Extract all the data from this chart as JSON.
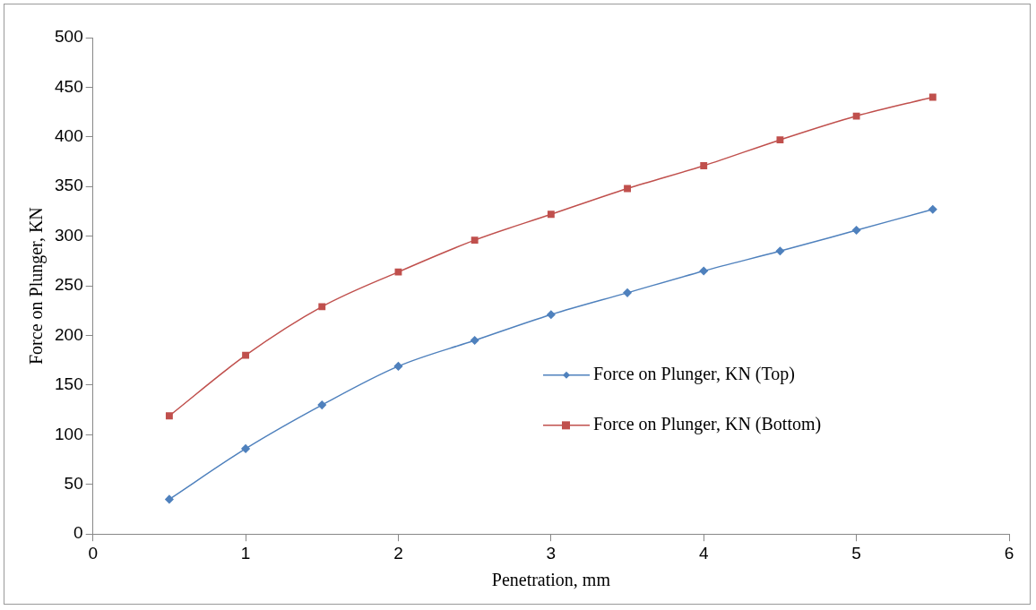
{
  "chart_data": {
    "type": "line",
    "xlabel": "Penetration, mm",
    "ylabel": "Force on Plunger, KN",
    "xlim": [
      0,
      6
    ],
    "xticks": [
      0,
      1,
      2,
      3,
      4,
      5,
      6
    ],
    "ylim": [
      0,
      500
    ],
    "yticks": [
      0,
      50,
      100,
      150,
      200,
      250,
      300,
      350,
      400,
      450,
      500
    ],
    "x": [
      0.5,
      1,
      1.5,
      2,
      2.5,
      3,
      3.5,
      4,
      4.5,
      5,
      5.5
    ],
    "series": [
      {
        "name": "Force on Plunger, KN (Top)",
        "color": "#4f81bd",
        "marker": "diamond",
        "values": [
          35,
          86,
          130,
          169,
          195,
          221,
          243,
          265,
          285,
          306,
          327
        ]
      },
      {
        "name": "Force on Plunger, KN (Bottom)",
        "color": "#c0504d",
        "marker": "square",
        "values": [
          119,
          180,
          229,
          264,
          296,
          322,
          348,
          371,
          397,
          421,
          440
        ]
      }
    ],
    "grid": false,
    "legend": "right",
    "line_style": "solid"
  }
}
